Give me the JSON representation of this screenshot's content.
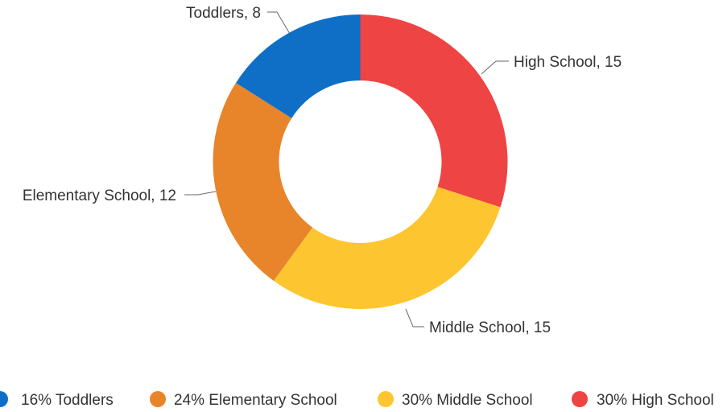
{
  "chart_data": {
    "type": "pie",
    "donut": true,
    "title": "",
    "categories": [
      "Toddlers",
      "Elementary School",
      "Middle School",
      "High School"
    ],
    "values": [
      8,
      12,
      15,
      15
    ],
    "colors": [
      "#0F6FC6",
      "#E8842A",
      "#FDC52F",
      "#EE4444"
    ],
    "slice_labels": [
      "Toddlers, 8",
      "Elementary School, 12",
      "Middle School, 15",
      "High School, 15"
    ],
    "legend": {
      "position": "bottom",
      "entries": [
        "16% Toddlers",
        "24% Elementary School",
        "30% Middle School",
        "30% High School"
      ]
    }
  }
}
